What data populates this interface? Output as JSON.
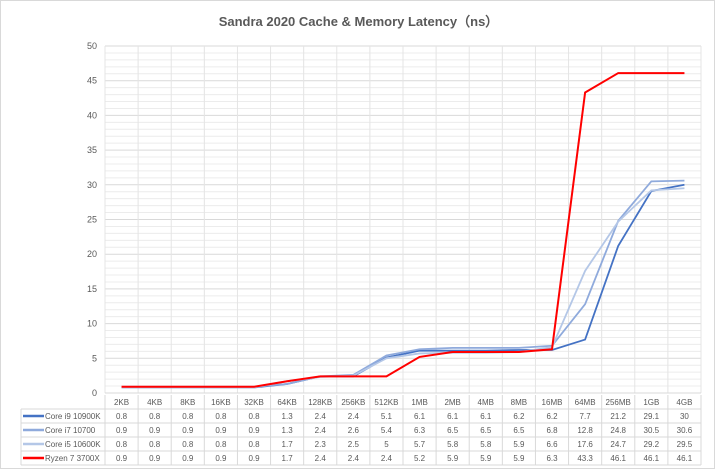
{
  "chart_data": {
    "type": "line",
    "title": "Sandra 2020 Cache & Memory Latency（ns）",
    "categories": [
      "2KB",
      "4KB",
      "8KB",
      "16KB",
      "32KB",
      "64KB",
      "128KB",
      "256KB",
      "512KB",
      "1MB",
      "2MB",
      "4MB",
      "8MB",
      "16MB",
      "64MB",
      "256MB",
      "1GB",
      "4GB"
    ],
    "ylim": [
      0,
      50
    ],
    "yticks": [
      0,
      5,
      10,
      15,
      20,
      25,
      30,
      35,
      40,
      45,
      50
    ],
    "grid": true,
    "legend": "bottom-data-table",
    "series": [
      {
        "name": "Core i9 10900K",
        "color": "#4472C4",
        "values": [
          0.8,
          0.8,
          0.8,
          0.8,
          0.8,
          1.3,
          2.4,
          2.4,
          5.1,
          6.1,
          6.1,
          6.1,
          6.2,
          6.2,
          7.7,
          21.2,
          29.1,
          30
        ]
      },
      {
        "name": "Core i7 10700",
        "color": "#8FAADC",
        "values": [
          0.9,
          0.9,
          0.9,
          0.9,
          0.9,
          1.3,
          2.4,
          2.6,
          5.4,
          6.3,
          6.5,
          6.5,
          6.5,
          6.8,
          12.8,
          24.8,
          30.5,
          30.6
        ]
      },
      {
        "name": "Core i5 10600K",
        "color": "#B4C7E7",
        "values": [
          0.8,
          0.8,
          0.8,
          0.8,
          0.8,
          1.7,
          2.3,
          2.5,
          5,
          5.7,
          5.8,
          5.8,
          5.9,
          6.6,
          17.6,
          24.7,
          29.2,
          29.5
        ]
      },
      {
        "name": "Ryzen 7 3700X",
        "color": "#FF0000",
        "values": [
          0.9,
          0.9,
          0.9,
          0.9,
          0.9,
          1.7,
          2.4,
          2.4,
          2.4,
          5.2,
          5.9,
          5.9,
          5.9,
          6.3,
          43.3,
          46.1,
          46.1,
          46.1
        ]
      }
    ]
  }
}
